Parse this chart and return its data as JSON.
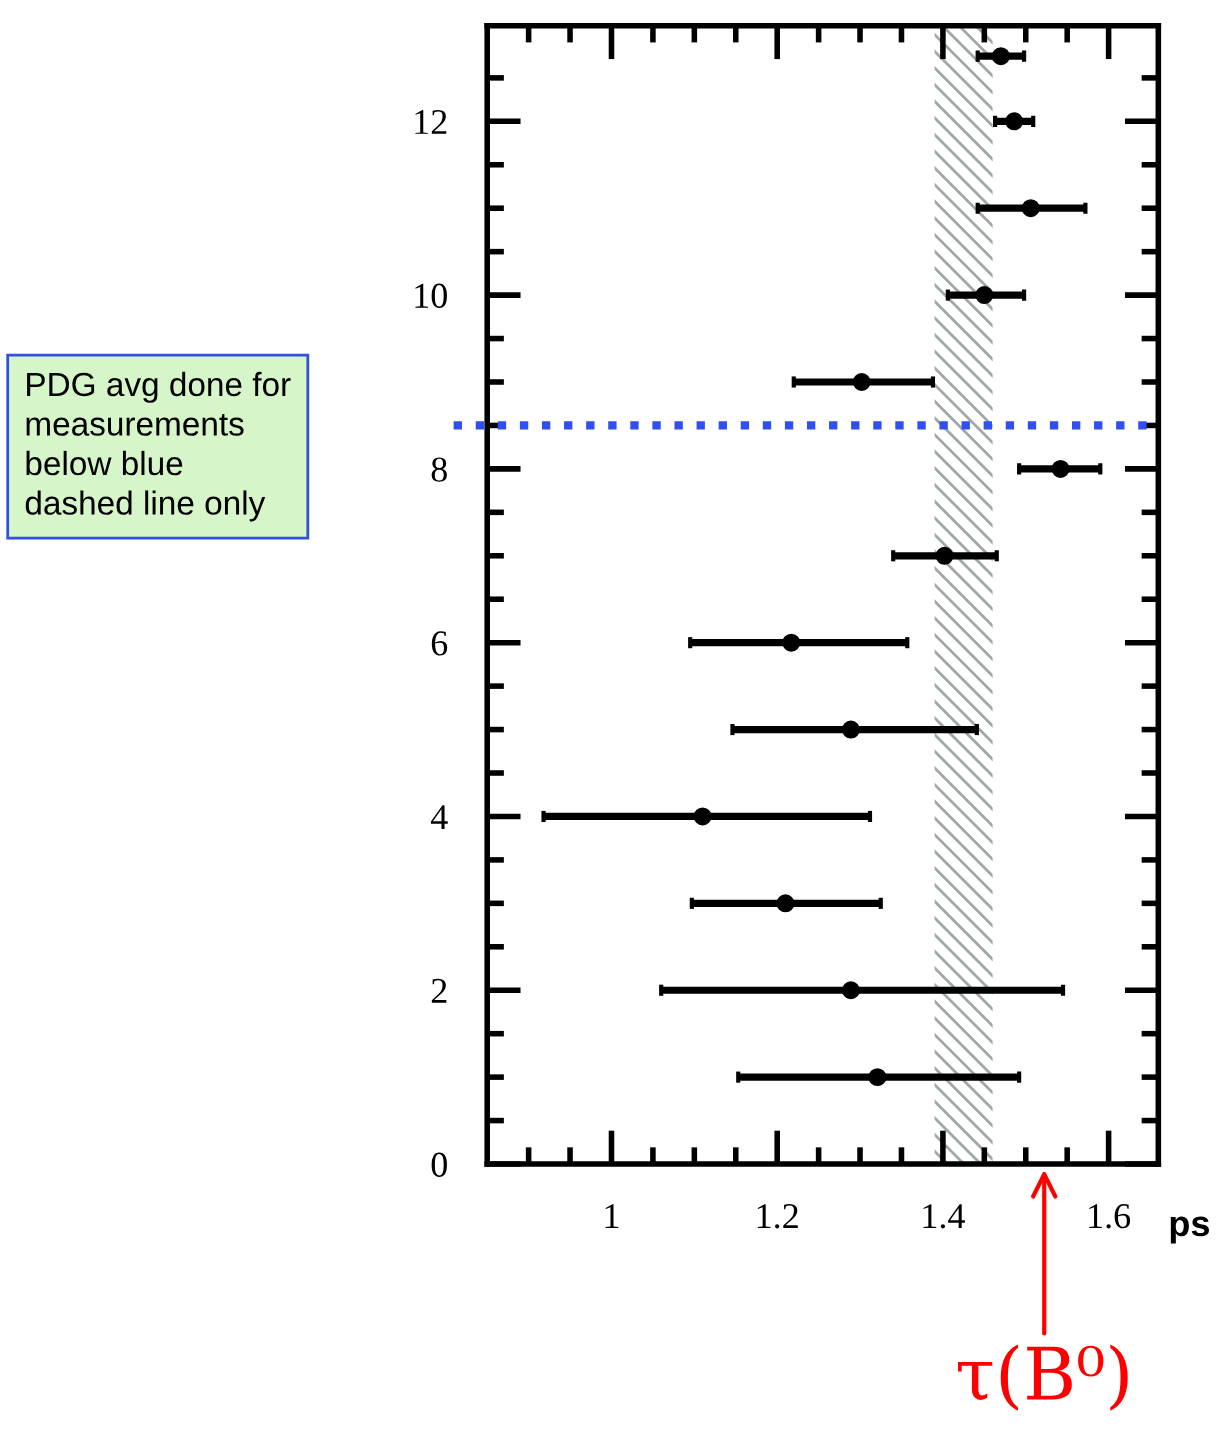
{
  "chart_data": {
    "type": "scatter",
    "xlabel": "ps",
    "x": [
      1.321,
      1.289,
      1.21,
      1.11,
      1.289,
      1.217,
      1.402,
      1.542,
      1.302,
      1.45,
      1.506,
      1.486,
      1.47
    ],
    "values": [
      1,
      2,
      3,
      4,
      5,
      6,
      7,
      8,
      9,
      10,
      11,
      12,
      12.75
    ],
    "xerrors": [
      [
        1.153,
        1.492
      ],
      [
        1.06,
        1.545
      ],
      [
        1.097,
        1.325
      ],
      [
        0.918,
        1.312
      ],
      [
        1.146,
        1.441
      ],
      [
        1.095,
        1.357
      ],
      [
        1.34,
        1.465
      ],
      [
        1.492,
        1.59
      ],
      [
        1.22,
        1.388
      ],
      [
        1.406,
        1.498
      ],
      [
        1.442,
        1.572
      ],
      [
        1.463,
        1.509
      ],
      [
        1.442,
        1.498
      ]
    ],
    "color": "#000000",
    "marker": "circle",
    "xlim": [
      0.85,
      1.66
    ],
    "ylim": [
      0,
      13.1
    ],
    "xticks": [
      1,
      1.2,
      1.4,
      1.6
    ],
    "yticks": [
      0,
      2,
      4,
      6,
      8,
      10,
      12
    ],
    "grid": false,
    "legend": false,
    "ref_lines": [
      {
        "axis": "y",
        "value": 8.5,
        "color": "#2f4ff0",
        "line_style": "dotted"
      }
    ],
    "bands": [
      {
        "axis": "x",
        "from": 1.39,
        "to": 1.46,
        "color": "#a0a8a8"
      }
    ],
    "annotations": [
      "PDG avg done for\nmeasurements\nbelow blue\ndashed line only",
      "τ(B⁰)"
    ]
  }
}
